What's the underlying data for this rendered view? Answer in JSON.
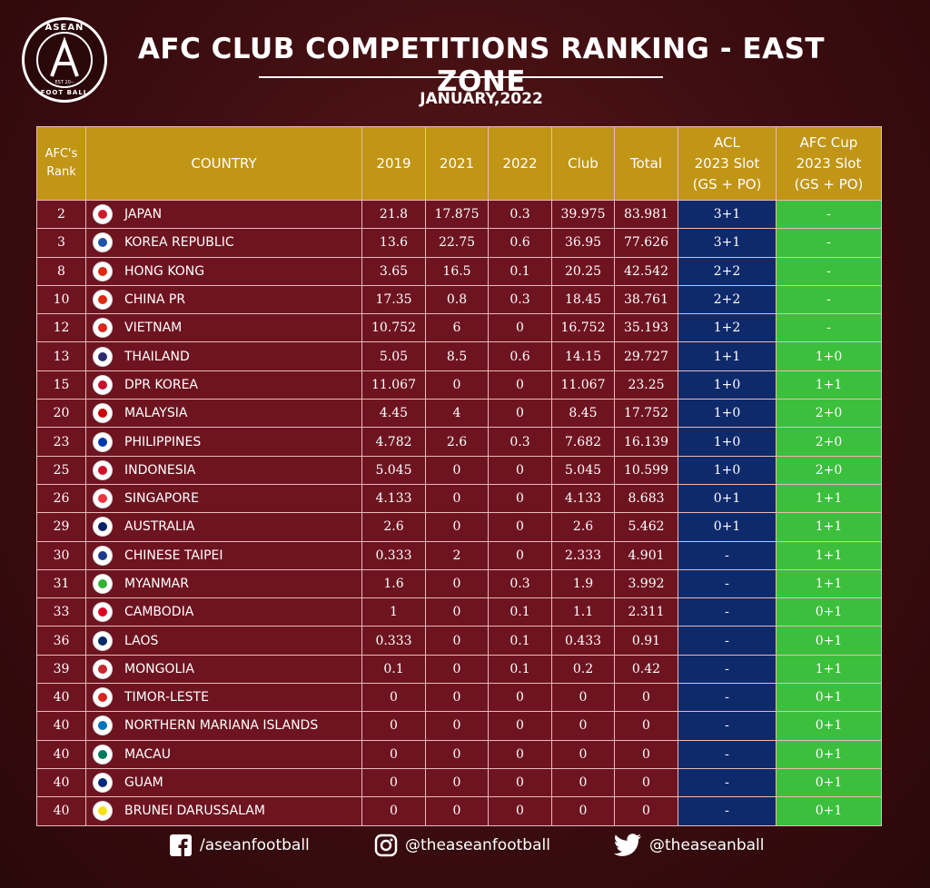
{
  "logo": {
    "top_text": "ASEAN",
    "bottom_text": "FOOT BALL",
    "est_text": "EST 20--",
    "letter": "A"
  },
  "header": {
    "title": "AFC CLUB COMPETITIONS RANKING - EAST ZONE",
    "subtitle": "JANUARY,2022"
  },
  "table": {
    "columns": {
      "rank": [
        "AFC's",
        "Rank"
      ],
      "country": "COUNTRY",
      "y2019": "2019",
      "y2021": "2021",
      "y2022": "2022",
      "club": "Club",
      "total": "Total",
      "acl": [
        "ACL",
        "2023 Slot",
        "(GS + PO)"
      ],
      "afc": [
        "AFC Cup",
        "2023 Slot",
        "(GS + PO)"
      ]
    },
    "rows": [
      {
        "rank": "2",
        "country": "JAPAN",
        "y2019": "21.8",
        "y2021": "17.875",
        "y2022": "0.3",
        "club": "39.975",
        "total": "83.981",
        "acl": "3+1",
        "afc": "-",
        "flag": "#d01a2b"
      },
      {
        "rank": "3",
        "country": "KOREA REPUBLIC",
        "y2019": "13.6",
        "y2021": "22.75",
        "y2022": "0.6",
        "club": "36.95",
        "total": "77.626",
        "acl": "3+1",
        "afc": "-",
        "flag": "#2152a7"
      },
      {
        "rank": "8",
        "country": "HONG KONG",
        "y2019": "3.65",
        "y2021": "16.5",
        "y2022": "0.1",
        "club": "20.25",
        "total": "42.542",
        "acl": "2+2",
        "afc": "-",
        "flag": "#de2910"
      },
      {
        "rank": "10",
        "country": "CHINA PR",
        "y2019": "17.35",
        "y2021": "0.8",
        "y2022": "0.3",
        "club": "18.45",
        "total": "38.761",
        "acl": "2+2",
        "afc": "-",
        "flag": "#de2910"
      },
      {
        "rank": "12",
        "country": "VIETNAM",
        "y2019": "10.752",
        "y2021": "6",
        "y2022": "0",
        "club": "16.752",
        "total": "35.193",
        "acl": "1+2",
        "afc": "-",
        "flag": "#da251d"
      },
      {
        "rank": "13",
        "country": "THAILAND",
        "y2019": "5.05",
        "y2021": "8.5",
        "y2022": "0.6",
        "club": "14.15",
        "total": "29.727",
        "acl": "1+1",
        "afc": "1+0",
        "flag": "#2d2a6e"
      },
      {
        "rank": "15",
        "country": "DPR KOREA",
        "y2019": "11.067",
        "y2021": "0",
        "y2022": "0",
        "club": "11.067",
        "total": "23.25",
        "acl": "1+0",
        "afc": "1+1",
        "flag": "#c8102e"
      },
      {
        "rank": "20",
        "country": "MALAYSIA",
        "y2019": "4.45",
        "y2021": "4",
        "y2022": "0",
        "club": "8.45",
        "total": "17.752",
        "acl": "1+0",
        "afc": "2+0",
        "flag": "#cc0001"
      },
      {
        "rank": "23",
        "country": "PHILIPPINES",
        "y2019": "4.782",
        "y2021": "2.6",
        "y2022": "0.3",
        "club": "7.682",
        "total": "16.139",
        "acl": "1+0",
        "afc": "2+0",
        "flag": "#0038a8"
      },
      {
        "rank": "25",
        "country": "INDONESIA",
        "y2019": "5.045",
        "y2021": "0",
        "y2022": "0",
        "club": "5.045",
        "total": "10.599",
        "acl": "1+0",
        "afc": "2+0",
        "flag": "#ce1126"
      },
      {
        "rank": "26",
        "country": "SINGAPORE",
        "y2019": "4.133",
        "y2021": "0",
        "y2022": "0",
        "club": "4.133",
        "total": "8.683",
        "acl": "0+1",
        "afc": "1+1",
        "flag": "#ef3340"
      },
      {
        "rank": "29",
        "country": "AUSTRALIA",
        "y2019": "2.6",
        "y2021": "0",
        "y2022": "0",
        "club": "2.6",
        "total": "5.462",
        "acl": "0+1",
        "afc": "1+1",
        "flag": "#012169"
      },
      {
        "rank": "30",
        "country": "CHINESE TAIPEI",
        "y2019": "0.333",
        "y2021": "2",
        "y2022": "0",
        "club": "2.333",
        "total": "4.901",
        "acl": "-",
        "afc": "1+1",
        "flag": "#1e3a8a"
      },
      {
        "rank": "31",
        "country": "MYANMAR",
        "y2019": "1.6",
        "y2021": "0",
        "y2022": "0.3",
        "club": "1.9",
        "total": "3.992",
        "acl": "-",
        "afc": "1+1",
        "flag": "#34b233"
      },
      {
        "rank": "33",
        "country": "CAMBODIA",
        "y2019": "1",
        "y2021": "0",
        "y2022": "0.1",
        "club": "1.1",
        "total": "2.311",
        "acl": "-",
        "afc": "0+1",
        "flag": "#e00025"
      },
      {
        "rank": "36",
        "country": "LAOS",
        "y2019": "0.333",
        "y2021": "0",
        "y2022": "0.1",
        "club": "0.433",
        "total": "0.91",
        "acl": "-",
        "afc": "0+1",
        "flag": "#002868"
      },
      {
        "rank": "39",
        "country": "MONGOLIA",
        "y2019": "0.1",
        "y2021": "0",
        "y2022": "0.1",
        "club": "0.2",
        "total": "0.42",
        "acl": "-",
        "afc": "1+1",
        "flag": "#c4272f"
      },
      {
        "rank": "40",
        "country": "TIMOR-LESTE",
        "y2019": "0",
        "y2021": "0",
        "y2022": "0",
        "club": "0",
        "total": "0",
        "acl": "-",
        "afc": "0+1",
        "flag": "#dc241f"
      },
      {
        "rank": "40",
        "country": "NORTHERN MARIANA ISLANDS",
        "y2019": "0",
        "y2021": "0",
        "y2022": "0",
        "club": "0",
        "total": "0",
        "acl": "-",
        "afc": "0+1",
        "flag": "#0071bc"
      },
      {
        "rank": "40",
        "country": "MACAU",
        "y2019": "0",
        "y2021": "0",
        "y2022": "0",
        "club": "0",
        "total": "0",
        "acl": "-",
        "afc": "0+1",
        "flag": "#00785e"
      },
      {
        "rank": "40",
        "country": "GUAM",
        "y2019": "0",
        "y2021": "0",
        "y2022": "0",
        "club": "0",
        "total": "0",
        "acl": "-",
        "afc": "0+1",
        "flag": "#00297b"
      },
      {
        "rank": "40",
        "country": "BRUNEI DARUSSALAM",
        "y2019": "0",
        "y2021": "0",
        "y2022": "0",
        "club": "0",
        "total": "0",
        "acl": "-",
        "afc": "0+1",
        "flag": "#f7e017"
      }
    ]
  },
  "footer": {
    "facebook": "/aseanfootball",
    "instagram": "@theaseanfootball",
    "twitter": "@theaseanball"
  }
}
